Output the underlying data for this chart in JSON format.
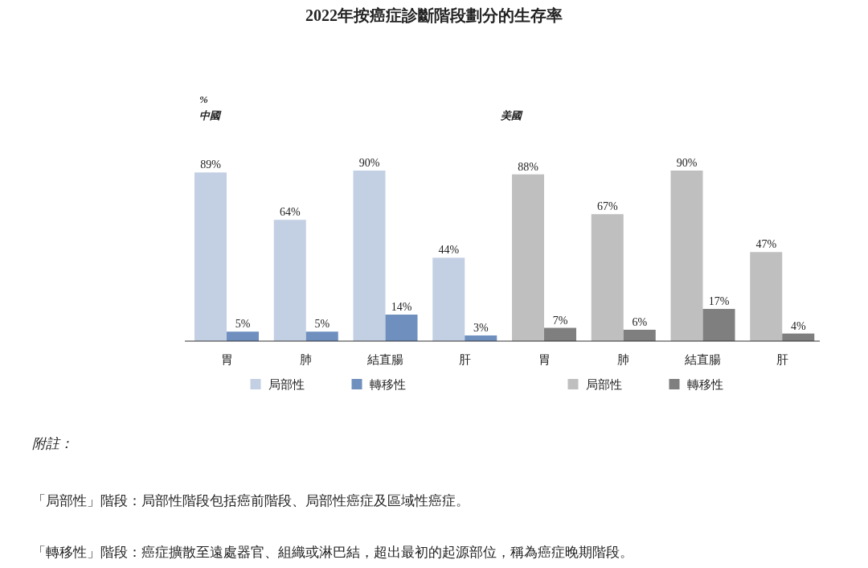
{
  "chart_data": [
    {
      "type": "bar",
      "title": "2022年按癌症診斷階段劃分的生存率",
      "ylabel": "%",
      "subtitle": "中國",
      "categories": [
        "胃",
        "肺",
        "結直腸",
        "肝"
      ],
      "series": [
        {
          "name": "局部性",
          "color": "#c3d0e4",
          "values": [
            89,
            64,
            90,
            44
          ],
          "value_labels": [
            "89%",
            "64%",
            "90%",
            "44%"
          ]
        },
        {
          "name": "轉移性",
          "color": "#6f8fbf",
          "values": [
            5,
            5,
            14,
            3
          ],
          "value_labels": [
            "5%",
            "5%",
            "14%",
            "3%"
          ]
        }
      ],
      "legend": "bottom",
      "annotations": [
        "附註：",
        "「局部性」階段：局部性階段包括癌前階段、局部性癌症及區域性癌症。",
        "「轉移性」階段：癌症擴散至遠處器官、組織或淋巴結，超出最初的起源部位，稱為癌症晚期階段。"
      ]
    },
    {
      "type": "bar",
      "subtitle": "美國",
      "categories": [
        "胃",
        "肺",
        "結直腸",
        "肝"
      ],
      "series": [
        {
          "name": "局部性",
          "color": "#bfbfbf",
          "values": [
            88,
            67,
            90,
            47
          ],
          "value_labels": [
            "88%",
            "67%",
            "90%",
            "47%"
          ]
        },
        {
          "name": "轉移性",
          "color": "#7f7f7f",
          "values": [
            7,
            6,
            17,
            4
          ],
          "value_labels": [
            "7%",
            "6%",
            "17%",
            "4%"
          ]
        }
      ],
      "legend": "bottom"
    }
  ]
}
